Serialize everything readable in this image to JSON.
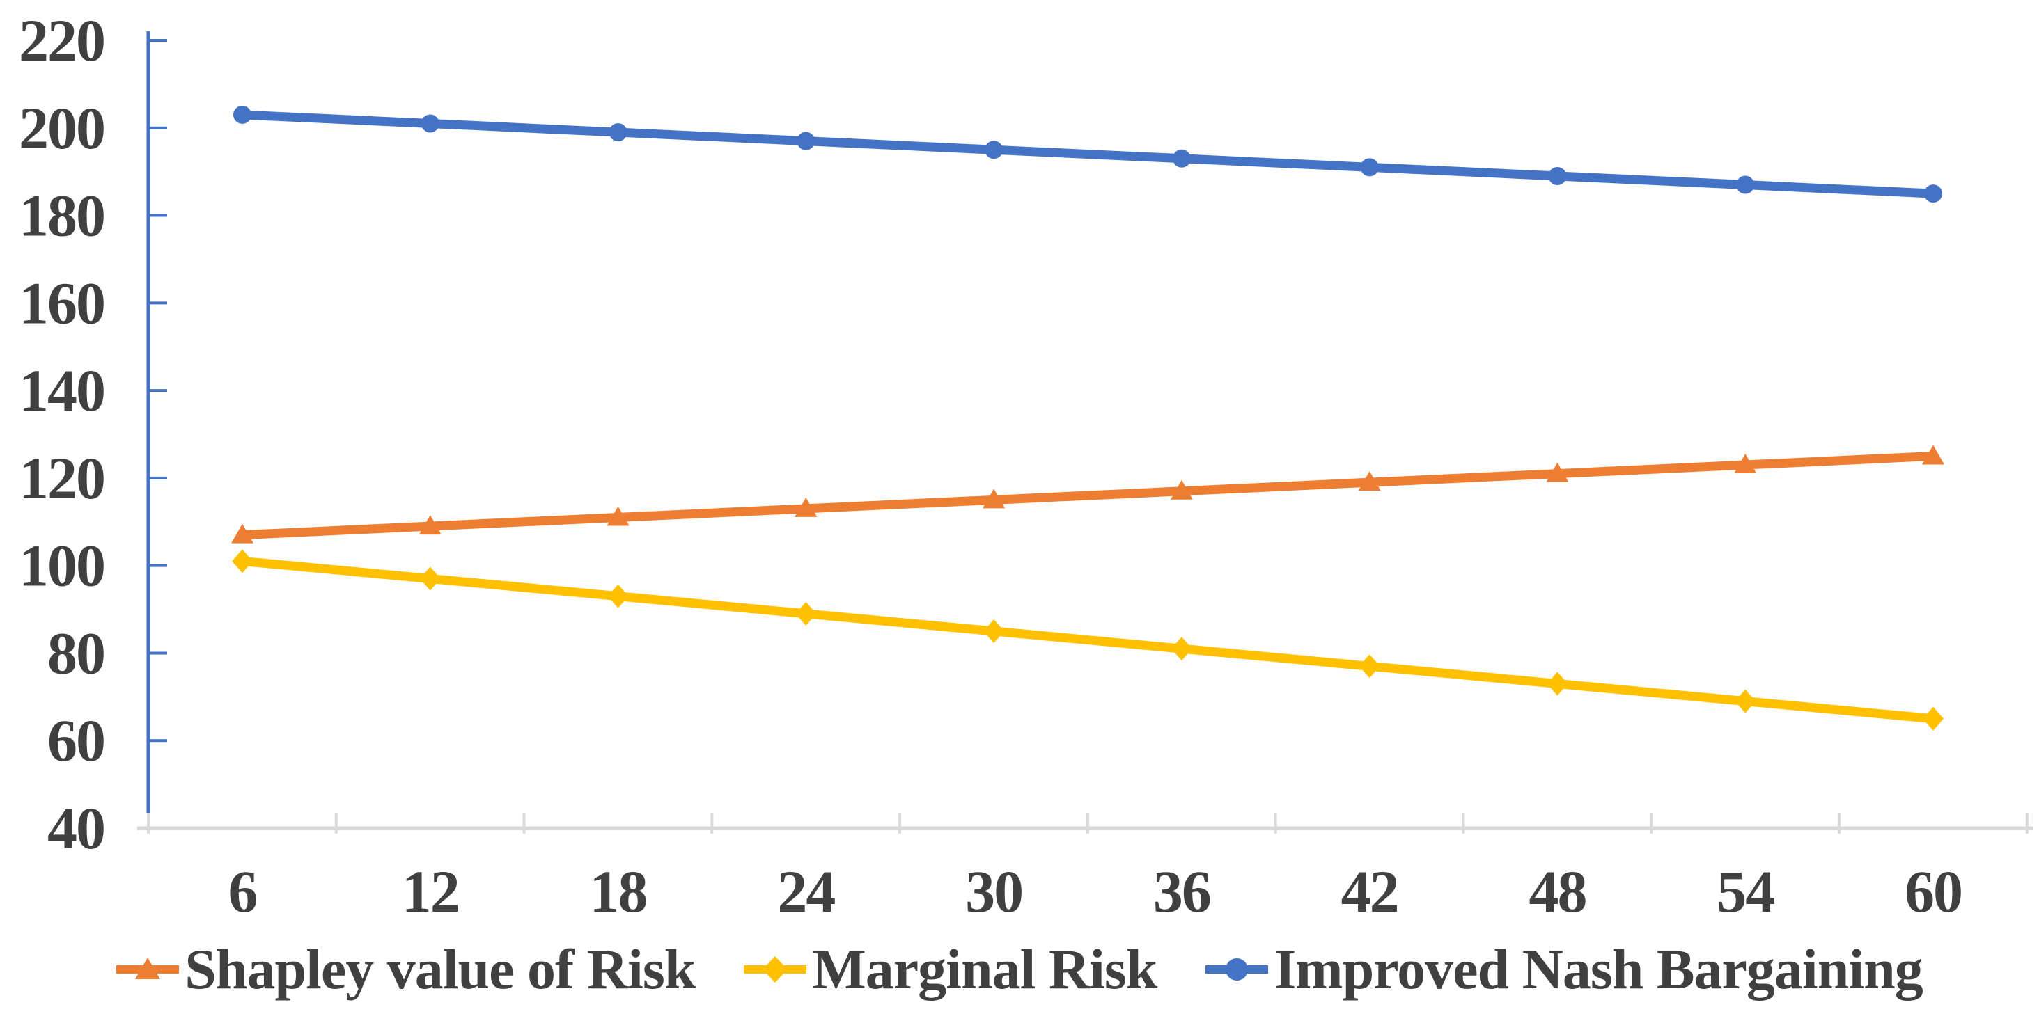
{
  "chart_data": {
    "type": "line",
    "title": "",
    "xlabel": "",
    "ylabel": "",
    "x": [
      6,
      12,
      18,
      24,
      30,
      36,
      42,
      48,
      54,
      60
    ],
    "series": [
      {
        "name": "Shapley value of Risk",
        "marker": "triangle",
        "color": "#ED7D31",
        "values": [
          107,
          109,
          111,
          113,
          115,
          117,
          119,
          121,
          123,
          125
        ]
      },
      {
        "name": "Marginal Risk",
        "marker": "diamond",
        "color": "#FFC000",
        "values": [
          101,
          97,
          93,
          89,
          85,
          81,
          77,
          73,
          69,
          65
        ]
      },
      {
        "name": "Improved Nash Bargaining",
        "marker": "circle",
        "color": "#4472C4",
        "values": [
          203,
          201,
          199,
          197,
          195,
          193,
          191,
          189,
          187,
          185
        ]
      }
    ],
    "ylim": [
      40,
      220
    ],
    "ytick_step": 20,
    "yticks": [
      220,
      200,
      180,
      160,
      140,
      120,
      100,
      80,
      60,
      40
    ],
    "grid": false,
    "legend_position": "bottom",
    "colors": {
      "y_axis": "#4472C4",
      "x_axis": "#D9D9D9",
      "tick_label": "#404040",
      "background": "#FFFFFF"
    }
  }
}
